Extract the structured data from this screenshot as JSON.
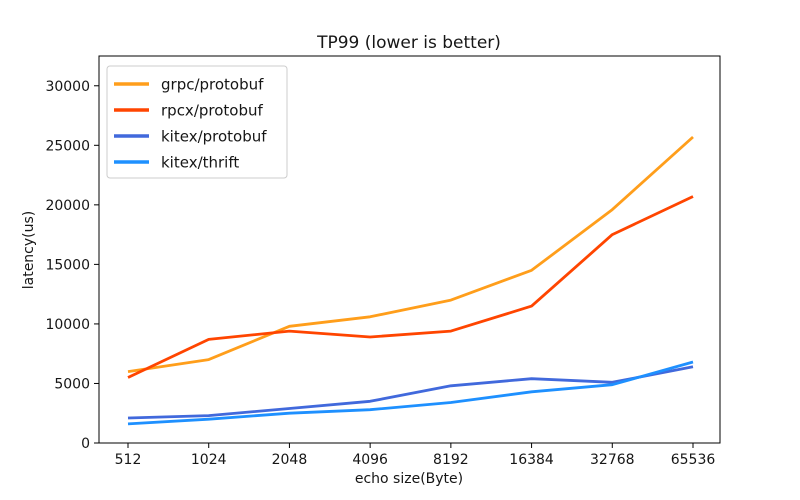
{
  "chart_data": {
    "type": "line",
    "title": "TP99 (lower is better)",
    "xlabel": "echo size(Byte)",
    "ylabel": "latency(us)",
    "categories": [
      "512",
      "1024",
      "2048",
      "4096",
      "8192",
      "16384",
      "32768",
      "65536"
    ],
    "y_ticks": [
      0,
      5000,
      10000,
      15000,
      20000,
      25000,
      30000
    ],
    "ylim": [
      0,
      32500
    ],
    "grid": false,
    "legend_position": "upper-left",
    "series": [
      {
        "name": "grpc/protobuf",
        "color": "#FF9E1B",
        "values": [
          6000,
          7000,
          9800,
          10600,
          12000,
          14500,
          19600,
          25700
        ]
      },
      {
        "name": "rpcx/protobuf",
        "color": "#FF4500",
        "values": [
          5500,
          8700,
          9400,
          8900,
          9400,
          11500,
          17500,
          20700
        ]
      },
      {
        "name": "kitex/protobuf",
        "color": "#4169DC",
        "values": [
          2100,
          2300,
          2900,
          3500,
          4800,
          5400,
          5100,
          6400
        ]
      },
      {
        "name": "kitex/thrift",
        "color": "#1E90FF",
        "values": [
          1600,
          2000,
          2500,
          2800,
          3400,
          4300,
          4900,
          6800
        ]
      }
    ]
  },
  "colors": {
    "background": "#ffffff",
    "axis": "#000000",
    "text": "#161616",
    "legend_border": "#cccccc"
  }
}
